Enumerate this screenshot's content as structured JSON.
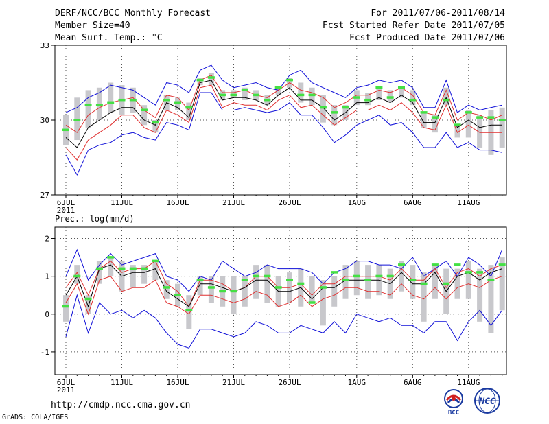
{
  "header": {
    "title": "DERF/NCC/BCC Monthly Forecast",
    "member_size": "Member Size=40",
    "variable": "Mean Surf. Temp.: °C",
    "period": "For 2011/07/06-2011/08/14",
    "started": "Fcst Started Refer Date 2011/07/05",
    "produced": "Fcst Produced Date 2011/07/06"
  },
  "footer": {
    "url": "http://cmdp.ncc.cma.gov.cn",
    "credit": "GrADS: COLA/IGES",
    "logo_left_text": "BCC",
    "logo_right_text": "NCC"
  },
  "colors": {
    "max_min": "#1010d8",
    "spread": "#e03030",
    "mean": "#000000",
    "box": "#c8c8cc",
    "marker": "#44e044"
  },
  "chart_data": [
    {
      "id": "temp",
      "type": "line",
      "title": "Mean Surf. Temp.: °C",
      "ylim": [
        27,
        33
      ],
      "yticks": [
        27,
        30,
        33
      ],
      "x_start": "2011-07-06",
      "days": 40,
      "xtick_labels": [
        {
          "day": 0,
          "label": "6JUL",
          "sub": "2011"
        },
        {
          "day": 5,
          "label": "11JUL"
        },
        {
          "day": 10,
          "label": "16JUL"
        },
        {
          "day": 15,
          "label": "21JUL"
        },
        {
          "day": 20,
          "label": "26JUL"
        },
        {
          "day": 26,
          "label": "1AUG"
        },
        {
          "day": 31,
          "label": "6AUG"
        },
        {
          "day": 36,
          "label": "11AUG"
        }
      ],
      "series": [
        {
          "name": "max",
          "color_key": "max_min",
          "values": [
            30.3,
            30.5,
            30.9,
            31.1,
            31.4,
            31.3,
            31.2,
            30.9,
            30.6,
            31.5,
            31.4,
            31.1,
            32.0,
            32.2,
            31.6,
            31.3,
            31.4,
            31.5,
            31.3,
            31.2,
            31.8,
            32.0,
            31.5,
            31.3,
            31.1,
            30.9,
            31.3,
            31.4,
            31.6,
            31.5,
            31.6,
            31.3,
            30.5,
            30.5,
            31.6,
            30.3,
            30.6,
            30.4,
            30.5,
            30.6
          ]
        },
        {
          "name": "spread_upper",
          "color_key": "spread",
          "values": [
            29.8,
            29.5,
            30.2,
            30.5,
            30.7,
            30.8,
            30.9,
            30.4,
            30.1,
            31.0,
            30.9,
            30.4,
            31.6,
            31.8,
            31.1,
            31.1,
            31.2,
            31.0,
            30.9,
            31.2,
            31.5,
            31.2,
            31.1,
            30.9,
            30.5,
            30.7,
            31.0,
            31.0,
            31.2,
            31.1,
            31.3,
            31.0,
            30.3,
            30.2,
            31.2,
            30.0,
            30.3,
            30.2,
            30.0,
            30.2
          ]
        },
        {
          "name": "mean",
          "color_key": "mean",
          "values": [
            29.3,
            28.9,
            29.7,
            30.0,
            30.3,
            30.5,
            30.5,
            30.0,
            29.8,
            30.7,
            30.5,
            30.1,
            31.5,
            31.6,
            30.8,
            30.9,
            30.9,
            30.8,
            30.6,
            31.0,
            31.3,
            30.8,
            30.8,
            30.5,
            30.0,
            30.3,
            30.7,
            30.7,
            30.9,
            30.7,
            31.0,
            30.7,
            29.9,
            29.9,
            30.9,
            29.7,
            30.0,
            29.7,
            29.8,
            29.8
          ]
        },
        {
          "name": "spread_lower",
          "color_key": "spread",
          "values": [
            28.9,
            28.4,
            29.2,
            29.5,
            29.8,
            30.2,
            30.2,
            29.7,
            29.5,
            30.4,
            30.2,
            29.9,
            31.3,
            31.4,
            30.5,
            30.7,
            30.6,
            30.6,
            30.4,
            30.8,
            31.0,
            30.5,
            30.6,
            30.2,
            29.8,
            30.1,
            30.4,
            30.4,
            30.6,
            30.4,
            30.7,
            30.3,
            29.7,
            29.6,
            30.6,
            29.5,
            29.8,
            29.5,
            29.5,
            29.5
          ]
        },
        {
          "name": "min",
          "color_key": "max_min",
          "values": [
            28.6,
            27.8,
            28.8,
            29.0,
            29.1,
            29.4,
            29.5,
            29.3,
            29.2,
            29.9,
            29.8,
            29.6,
            31.1,
            31.1,
            30.4,
            30.4,
            30.5,
            30.4,
            30.3,
            30.4,
            30.7,
            30.2,
            30.2,
            29.7,
            29.1,
            29.4,
            29.8,
            30.0,
            30.2,
            29.8,
            29.9,
            29.5,
            28.9,
            28.9,
            29.5,
            28.9,
            29.1,
            28.8,
            28.8,
            28.7
          ]
        }
      ],
      "boxes": {
        "low": [
          29.0,
          29.2,
          29.7,
          30.0,
          30.3,
          30.2,
          30.3,
          29.8,
          29.5,
          30.4,
          30.4,
          30.0,
          31.4,
          31.4,
          30.8,
          30.9,
          30.8,
          30.8,
          30.6,
          31.0,
          31.3,
          30.7,
          30.6,
          29.9,
          29.8,
          30.0,
          30.6,
          30.6,
          30.8,
          30.7,
          30.9,
          30.6,
          29.7,
          29.5,
          30.6,
          29.3,
          29.3,
          28.9,
          28.6,
          28.9
        ],
        "high": [
          30.2,
          30.9,
          31.2,
          31.3,
          31.5,
          31.4,
          31.3,
          30.6,
          30.0,
          31.0,
          30.9,
          30.7,
          31.7,
          31.9,
          31.2,
          31.2,
          31.3,
          31.2,
          31.0,
          31.3,
          31.7,
          31.5,
          31.3,
          31.0,
          30.6,
          30.6,
          31.2,
          31.1,
          31.3,
          31.2,
          31.3,
          31.2,
          30.3,
          30.2,
          31.3,
          29.8,
          30.4,
          30.2,
          30.4,
          30.5
        ]
      },
      "markers": [
        29.6,
        30.0,
        30.6,
        30.6,
        30.7,
        30.8,
        30.8,
        30.4,
        29.9,
        30.8,
        30.7,
        30.5,
        31.6,
        31.7,
        31.0,
        31.0,
        31.2,
        31.0,
        30.8,
        31.3,
        31.6,
        31.0,
        31.0,
        30.5,
        30.3,
        30.5,
        30.9,
        30.8,
        31.3,
        30.9,
        31.3,
        30.8,
        30.3,
        30.1,
        30.8,
        29.8,
        30.3,
        30.1,
        30.1,
        30.0
      ]
    },
    {
      "id": "prec",
      "type": "line",
      "title": "Prec.: log(mm/d)",
      "ylim": [
        -1.6,
        2.3
      ],
      "yticks": [
        -1,
        0,
        1,
        2
      ],
      "x_start": "2011-07-06",
      "days": 40,
      "xtick_labels": [
        {
          "day": 0,
          "label": "6JUL",
          "sub": "2011"
        },
        {
          "day": 5,
          "label": "11JUL"
        },
        {
          "day": 10,
          "label": "16JUL"
        },
        {
          "day": 15,
          "label": "21JUL"
        },
        {
          "day": 20,
          "label": "26JUL"
        },
        {
          "day": 26,
          "label": "1AUG"
        },
        {
          "day": 31,
          "label": "6AUG"
        },
        {
          "day": 36,
          "label": "11AUG"
        }
      ],
      "series": [
        {
          "name": "max",
          "color_key": "max_min",
          "values": [
            1.0,
            1.7,
            0.9,
            1.3,
            1.6,
            1.3,
            1.4,
            1.5,
            1.6,
            1.0,
            0.9,
            0.6,
            1.0,
            0.9,
            1.4,
            1.2,
            1.0,
            1.1,
            1.3,
            1.2,
            1.2,
            1.2,
            1.1,
            0.8,
            1.1,
            1.2,
            1.4,
            1.4,
            1.3,
            1.3,
            1.2,
            1.5,
            1.0,
            1.2,
            1.4,
            1.0,
            1.5,
            1.3,
            1.0,
            1.7
          ]
        },
        {
          "name": "spread_upper",
          "color_key": "spread",
          "values": [
            0.7,
            1.1,
            0.5,
            1.2,
            1.4,
            1.1,
            1.2,
            1.2,
            1.4,
            0.8,
            0.6,
            0.2,
            0.9,
            0.9,
            0.8,
            0.6,
            0.7,
            1.0,
            1.0,
            0.7,
            0.7,
            0.8,
            0.5,
            0.8,
            0.8,
            1.0,
            1.0,
            1.0,
            1.0,
            0.9,
            1.2,
            0.9,
            0.9,
            1.2,
            0.7,
            1.1,
            1.2,
            1.0,
            1.2,
            1.3
          ]
        },
        {
          "name": "mean",
          "color_key": "mean",
          "values": [
            0.5,
            1.0,
            0.2,
            1.2,
            1.3,
            1.0,
            1.1,
            1.1,
            1.2,
            0.6,
            0.4,
            0.2,
            0.8,
            0.8,
            0.7,
            0.6,
            0.7,
            0.9,
            0.9,
            0.6,
            0.6,
            0.7,
            0.4,
            0.7,
            0.7,
            0.9,
            0.9,
            0.9,
            0.9,
            0.8,
            1.1,
            0.8,
            0.8,
            1.1,
            0.6,
            1.0,
            1.1,
            0.9,
            1.1,
            1.2
          ]
        },
        {
          "name": "spread_lower",
          "color_key": "spread",
          "values": [
            0.3,
            0.8,
            0.0,
            0.9,
            1.0,
            0.6,
            0.7,
            0.7,
            0.9,
            0.3,
            0.2,
            0.0,
            0.5,
            0.5,
            0.4,
            0.3,
            0.4,
            0.6,
            0.5,
            0.2,
            0.3,
            0.5,
            0.2,
            0.4,
            0.5,
            0.7,
            0.7,
            0.6,
            0.6,
            0.5,
            0.8,
            0.5,
            0.4,
            0.7,
            0.4,
            0.7,
            0.8,
            0.7,
            0.9,
            1.0
          ]
        },
        {
          "name": "min",
          "color_key": "max_min",
          "values": [
            -0.6,
            0.5,
            -0.5,
            0.3,
            0.0,
            0.1,
            -0.1,
            0.1,
            -0.1,
            -0.5,
            -0.8,
            -0.9,
            -0.4,
            -0.4,
            -0.5,
            -0.6,
            -0.5,
            -0.2,
            -0.3,
            -0.5,
            -0.5,
            -0.3,
            -0.4,
            -0.5,
            -0.2,
            -0.5,
            0.0,
            -0.1,
            -0.2,
            -0.1,
            -0.3,
            -0.3,
            -0.5,
            -0.2,
            -0.2,
            -0.7,
            -0.2,
            0.1,
            -0.3,
            0.1
          ]
        }
      ],
      "boxes": {
        "low": [
          -0.2,
          0.8,
          0.0,
          0.8,
          1.0,
          0.6,
          0.7,
          0.8,
          0.9,
          0.4,
          0.2,
          -0.4,
          0.5,
          0.3,
          0.2,
          0.0,
          0.2,
          0.4,
          0.3,
          0.2,
          0.3,
          0.2,
          0.3,
          -0.3,
          0.2,
          0.4,
          0.5,
          0.4,
          0.5,
          0.4,
          0.6,
          0.4,
          -0.2,
          0.4,
          0.0,
          0.4,
          0.4,
          -0.2,
          -0.5,
          0.1
        ],
        "high": [
          0.5,
          1.3,
          0.5,
          1.4,
          1.5,
          1.4,
          1.3,
          1.3,
          1.4,
          0.9,
          0.8,
          0.5,
          1.0,
          1.0,
          1.0,
          1.0,
          1.0,
          1.3,
          1.3,
          1.0,
          1.1,
          1.2,
          1.0,
          0.9,
          1.0,
          1.3,
          1.4,
          1.3,
          1.3,
          1.2,
          1.4,
          1.3,
          1.1,
          1.3,
          1.2,
          1.2,
          1.4,
          1.2,
          1.3,
          1.5
        ]
      },
      "markers": [
        0.2,
        1.0,
        0.4,
        1.2,
        1.5,
        1.2,
        1.2,
        1.2,
        1.4,
        0.7,
        0.5,
        0.1,
        0.9,
        0.7,
        0.6,
        0.6,
        0.9,
        1.0,
        1.0,
        0.7,
        0.9,
        0.8,
        0.3,
        0.7,
        1.1,
        0.9,
        1.0,
        0.9,
        1.0,
        1.0,
        1.3,
        0.9,
        0.8,
        1.3,
        0.8,
        1.3,
        1.1,
        1.1,
        0.9,
        1.3
      ]
    }
  ]
}
